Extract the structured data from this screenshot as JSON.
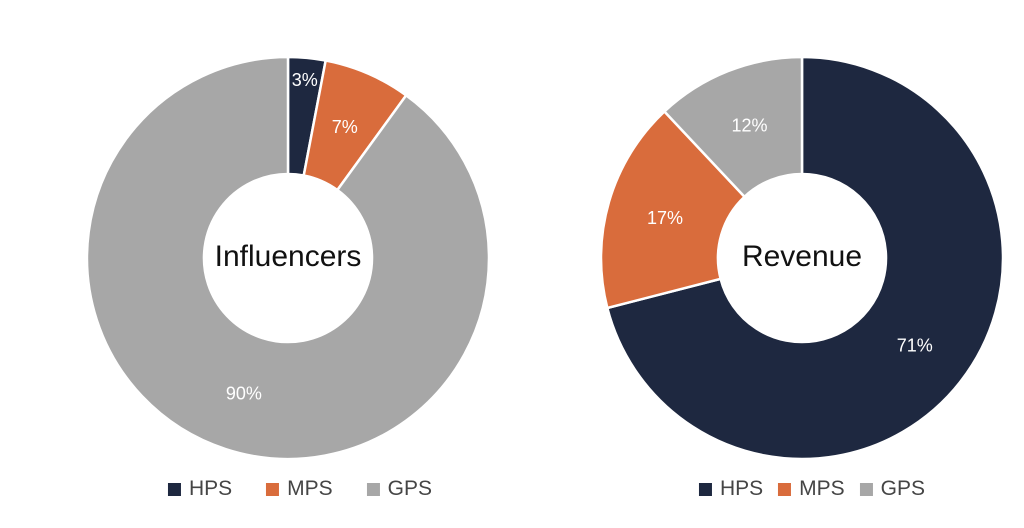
{
  "page": {
    "background": "#FFFFFF"
  },
  "palette": {
    "hps": "#1E2840",
    "mps": "#D96C3C",
    "gps": "#A7A7A7",
    "slice_border": "#FFFFFF",
    "label_text": "#FFFFFF",
    "legend_text": "#454545",
    "title_text": "#111111"
  },
  "chart_data": [
    {
      "type": "pie",
      "subtype": "donut",
      "title": "Influencers",
      "categories": [
        "HPS",
        "MPS",
        "GPS"
      ],
      "values": [
        3,
        7,
        90
      ],
      "labels": [
        "3%",
        "7%",
        "90%"
      ],
      "colors": [
        "#1E2840",
        "#D96C3C",
        "#A7A7A7"
      ],
      "legend_position": "bottom",
      "start_angle_deg": 0,
      "direction": "clockwise",
      "inner_radius_ratio": 0.418
    },
    {
      "type": "pie",
      "subtype": "donut",
      "title": "Revenue",
      "categories": [
        "HPS",
        "MPS",
        "GPS"
      ],
      "values": [
        71,
        17,
        12
      ],
      "labels": [
        "71%",
        "17%",
        "12%"
      ],
      "colors": [
        "#1E2840",
        "#D96C3C",
        "#A7A7A7"
      ],
      "legend_position": "bottom",
      "start_angle_deg": 0,
      "direction": "clockwise",
      "inner_radius_ratio": 0.418
    }
  ]
}
